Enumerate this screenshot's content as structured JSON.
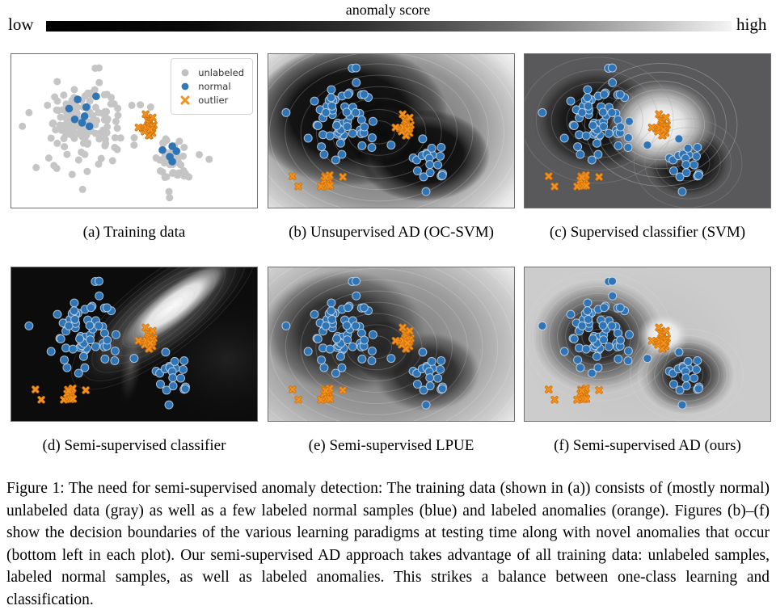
{
  "colorbar": {
    "title": "anomaly score",
    "low_label": "low",
    "high_label": "high",
    "gradient_stops": [
      "#000000 0%",
      "#0a0a0a 22%",
      "#2e2e2e 45%",
      "#6e6e6e 68%",
      "#b5b5b5 86%",
      "#f4f4f4 100%"
    ]
  },
  "legend": {
    "items": [
      {
        "label": "unlabeled",
        "marker": "circle",
        "color": "#c0c0c0"
      },
      {
        "label": "normal",
        "marker": "circle",
        "color": "#3579b5"
      },
      {
        "label": "outlier",
        "marker": "x",
        "color": "#f5911e"
      }
    ]
  },
  "panels": [
    {
      "id": "a",
      "caption": "(a) Training data"
    },
    {
      "id": "b",
      "caption": "(b) Unsupervised AD (OC-SVM)"
    },
    {
      "id": "c",
      "caption": "(c) Supervised classifier (SVM)"
    },
    {
      "id": "d",
      "caption": "(d) Semi-supervised classifier"
    },
    {
      "id": "e",
      "caption": "(e) Semi-supervised LPUE"
    },
    {
      "id": "f",
      "caption": "(f) Semi-supervised AD (ours)"
    }
  ],
  "caption": {
    "text": "Figure 1: The need for semi-supervised anomaly detection: The training data (shown in (a)) consists of (mostly normal) unlabeled data (gray) as well as a few labeled normal samples (blue) and labeled anomalies (orange). Figures (b)–(f) show the decision boundaries of the various learning paradigms at testing time along with novel anomalies that occur (bottom left in each plot). Our semi-supervised AD approach takes advantage of all training data: unlabeled samples, labeled normal samples, as well as labeled anomalies. This strikes a balance between one-class learning and classification."
  },
  "chart_data": {
    "type": "scatter",
    "coordinate_space": "normalized [0,1] x right, y down, within each 304x190 panel",
    "seed": 20190617,
    "marker_colors": {
      "unlabeled_fill": "#c5c5c5",
      "normal_fill": "#2f74b4",
      "normal_edge": "rgba(215,228,240,0.75)",
      "outlier_stroke": "#f5911e",
      "outlier_under_stroke": "#cc720a"
    },
    "clusters": {
      "normal_large": {
        "center": [
          0.3,
          0.45
        ],
        "sigma": [
          0.075,
          0.125
        ],
        "n_unlabeled": 150,
        "n_test_shown": 62
      },
      "normal_small": {
        "center": [
          0.66,
          0.7
        ],
        "sigma": [
          0.047,
          0.075
        ],
        "n_unlabeled": 48,
        "n_test_shown": 20
      },
      "labeled_outliers": {
        "center": [
          0.555,
          0.47
        ],
        "sigma": [
          0.018,
          0.034
        ],
        "n": 18
      },
      "novel_anomaly_cluster": {
        "center": [
          0.232,
          0.828
        ],
        "sigma": [
          0.014,
          0.025
        ],
        "n": 11
      }
    },
    "labeled_normal_points": [
      [
        0.27,
        0.295
      ],
      [
        0.235,
        0.355
      ],
      [
        0.258,
        0.425
      ],
      [
        0.305,
        0.345
      ],
      [
        0.298,
        0.405
      ],
      [
        0.345,
        0.275
      ],
      [
        0.318,
        0.47
      ],
      [
        0.288,
        0.447
      ],
      [
        0.615,
        0.625
      ],
      [
        0.655,
        0.6
      ],
      [
        0.645,
        0.668
      ],
      [
        0.672,
        0.632
      ],
      [
        0.655,
        0.7
      ]
    ],
    "novel_anomaly_singles": [
      [
        0.098,
        0.795
      ],
      [
        0.122,
        0.862
      ],
      [
        0.303,
        0.8
      ]
    ],
    "stray_unlabeled_points": [
      [
        0.525,
        0.33
      ],
      [
        0.567,
        0.345
      ],
      [
        0.765,
        0.655
      ],
      [
        0.805,
        0.685
      ],
      [
        0.045,
        0.47
      ],
      [
        0.5,
        0.545
      ]
    ],
    "panel_fields": {
      "a": {
        "bg": "#ffffff",
        "layers": [],
        "rings": [],
        "markers": {
          "gray": "train_unlabeled",
          "blue": "labeled_normal",
          "orange": "labeled_outliers"
        }
      },
      "b": {
        "bg": "#f5f5f5",
        "layers": [
          {
            "cx": 0.46,
            "cy": 0.5,
            "rx": 0.72,
            "ry": 0.85,
            "stops": [
              [
                0,
                "#606060",
                1
              ],
              [
                0.55,
                "#8f8f8f",
                0.95
              ],
              [
                0.8,
                "#c6c6c6",
                0.8
              ],
              [
                1,
                "#f2f2f2",
                0
              ]
            ]
          },
          {
            "cx": 0.33,
            "cy": 0.4,
            "rx": 0.4,
            "ry": 0.46,
            "stops": [
              [
                0,
                "#0a0a0a",
                1
              ],
              [
                0.6,
                "#141414",
                1
              ],
              [
                0.82,
                "#3c3c3c",
                0.75
              ],
              [
                1,
                "#000000",
                0
              ]
            ]
          },
          {
            "cx": 0.63,
            "cy": 0.66,
            "rx": 0.27,
            "ry": 0.3,
            "stops": [
              [
                0,
                "#0a0a0a",
                1
              ],
              [
                0.6,
                "#141414",
                1
              ],
              [
                0.82,
                "#3c3c3c",
                0.75
              ],
              [
                1,
                "#000000",
                0
              ]
            ]
          },
          {
            "cx": 0.47,
            "cy": 0.52,
            "rx": 0.13,
            "ry": 0.24,
            "rotate": 50,
            "stops": [
              [
                0,
                "#0a0a0a",
                1
              ],
              [
                0.7,
                "#141414",
                0.9
              ],
              [
                1,
                "#000000",
                0
              ]
            ]
          }
        ],
        "rings": [
          {
            "cx": 0.45,
            "cy": 0.51,
            "rx": 0.7,
            "ry": 0.82,
            "count": 11,
            "stroke": "#ffffff",
            "opacity": 0.22
          }
        ],
        "markers": {
          "blue": "test_normal",
          "orange": "all_outliers"
        }
      },
      "c": {
        "bg": "#59595b",
        "layers": [
          {
            "cx": 0.295,
            "cy": 0.43,
            "rx": 0.27,
            "ry": 0.36,
            "stops": [
              [
                0,
                "#0b0b0b",
                1
              ],
              [
                0.5,
                "#161616",
                0.95
              ],
              [
                0.75,
                "#2e2e2e",
                0.8
              ],
              [
                1,
                "#59595b",
                0
              ]
            ]
          },
          {
            "cx": 0.665,
            "cy": 0.71,
            "rx": 0.18,
            "ry": 0.24,
            "stops": [
              [
                0,
                "#0b0b0b",
                1
              ],
              [
                0.5,
                "#161616",
                0.95
              ],
              [
                0.75,
                "#2e2e2e",
                0.8
              ],
              [
                1,
                "#59595b",
                0
              ]
            ]
          },
          {
            "cx": 0.555,
            "cy": 0.46,
            "rx": 0.23,
            "ry": 0.3,
            "stops": [
              [
                0,
                "#ffffff",
                1
              ],
              [
                0.4,
                "#ececec",
                0.95
              ],
              [
                0.65,
                "#c2c2c2",
                0.8
              ],
              [
                0.85,
                "#8f8f8f",
                0.5
              ],
              [
                1,
                "#59595b",
                0
              ]
            ]
          }
        ],
        "rings": [
          {
            "cx": 0.555,
            "cy": 0.46,
            "rx": 0.31,
            "ry": 0.4,
            "count": 7,
            "stroke": "#d8d8d8",
            "opacity": 0.35
          },
          {
            "cx": 0.295,
            "cy": 0.43,
            "rx": 0.31,
            "ry": 0.41,
            "count": 5,
            "stroke": "#9a9a9a",
            "opacity": 0.35
          },
          {
            "cx": 0.665,
            "cy": 0.71,
            "rx": 0.22,
            "ry": 0.29,
            "count": 5,
            "stroke": "#9a9a9a",
            "opacity": 0.35
          }
        ],
        "markers": {
          "blue": "test_normal",
          "orange": "all_outliers"
        }
      },
      "d": {
        "bg": "#0c0c0c",
        "layers": [
          {
            "cx": 0.88,
            "cy": 0.6,
            "rx": 0.35,
            "ry": 0.45,
            "stops": [
              [
                0,
                "#2a2a2a",
                0.7
              ],
              [
                1,
                "#0c0c0c",
                0
              ]
            ]
          },
          {
            "cx": 0.62,
            "cy": 0.3,
            "rx": 0.5,
            "ry": 0.28,
            "rotate": -38,
            "stops": [
              [
                0,
                "#9a9a9a",
                0.9
              ],
              [
                0.6,
                "#555555",
                0.5
              ],
              [
                1,
                "#000000",
                0
              ]
            ]
          },
          {
            "cx": 0.66,
            "cy": 0.25,
            "rx": 0.3,
            "ry": 0.13,
            "rotate": -38,
            "stops": [
              [
                0,
                "#fbfbfb",
                1
              ],
              [
                0.45,
                "#e8e8e8",
                0.95
              ],
              [
                0.75,
                "#9a9a9a",
                0.6
              ],
              [
                1,
                "#000000",
                0
              ]
            ]
          },
          {
            "cx": 0.49,
            "cy": 0.62,
            "rx": 0.05,
            "ry": 0.3,
            "rotate": 8,
            "stops": [
              [
                0,
                "#8a8a8a",
                0.5
              ],
              [
                0.6,
                "#444444",
                0.3
              ],
              [
                1,
                "#000000",
                0
              ]
            ]
          }
        ],
        "rings": [
          {
            "cx": 0.62,
            "cy": 0.3,
            "rx": 0.46,
            "ry": 0.25,
            "rotate": -38,
            "count": 9,
            "stroke": "#bbbbbb",
            "opacity": 0.15
          }
        ],
        "markers": {
          "blue": "test_normal",
          "orange": "all_outliers"
        }
      },
      "e": {
        "bg": "#f2f2f2",
        "layers": [
          {
            "cx": 0.44,
            "cy": 0.52,
            "rx": 0.78,
            "ry": 0.92,
            "stops": [
              [
                0,
                "#6b6b6b",
                1
              ],
              [
                0.5,
                "#979797",
                0.95
              ],
              [
                0.78,
                "#c9c9c9",
                0.85
              ],
              [
                1,
                "#efefef",
                0
              ]
            ]
          },
          {
            "cx": 0.31,
            "cy": 0.42,
            "rx": 0.33,
            "ry": 0.4,
            "stops": [
              [
                0,
                "#1f1f1f",
                1
              ],
              [
                0.55,
                "#2e2e2e",
                0.95
              ],
              [
                0.85,
                "#555555",
                0.6
              ],
              [
                1,
                "#6b6b6b",
                0
              ]
            ]
          },
          {
            "cx": 0.64,
            "cy": 0.68,
            "rx": 0.22,
            "ry": 0.26,
            "stops": [
              [
                0,
                "#1f1f1f",
                1
              ],
              [
                0.55,
                "#2e2e2e",
                0.95
              ],
              [
                0.85,
                "#555555",
                0.6
              ],
              [
                1,
                "#6b6b6b",
                0
              ]
            ]
          },
          {
            "cx": 0.47,
            "cy": 0.54,
            "rx": 0.12,
            "ry": 0.2,
            "rotate": 50,
            "stops": [
              [
                0,
                "#222222",
                0.9
              ],
              [
                0.7,
                "#2e2e2e",
                0.7
              ],
              [
                1,
                "#000000",
                0
              ]
            ]
          }
        ],
        "rings": [
          {
            "cx": 0.44,
            "cy": 0.52,
            "rx": 0.74,
            "ry": 0.88,
            "count": 12,
            "stroke": "#ffffff",
            "opacity": 0.2
          }
        ],
        "markers": {
          "blue": "test_normal",
          "orange": "all_outliers"
        }
      },
      "f": {
        "bg": "#cccccc",
        "layers": [
          {
            "cx": 0.45,
            "cy": 0.55,
            "rx": 0.5,
            "ry": 0.62,
            "stops": [
              [
                0,
                "#a5a5a5",
                0.35
              ],
              [
                0.7,
                "#bcbcbc",
                0.2
              ],
              [
                1,
                "#cccccc",
                0
              ]
            ]
          },
          {
            "cx": 0.3,
            "cy": 0.45,
            "rx": 0.28,
            "ry": 0.38,
            "stops": [
              [
                0,
                "#0d0d0d",
                1
              ],
              [
                0.4,
                "#2b2b2b",
                0.95
              ],
              [
                0.7,
                "#6f6f6f",
                0.75
              ],
              [
                0.9,
                "#ababab",
                0.4
              ],
              [
                1,
                "#cccccc",
                0
              ]
            ]
          },
          {
            "cx": 0.66,
            "cy": 0.7,
            "rx": 0.2,
            "ry": 0.27,
            "stops": [
              [
                0,
                "#0d0d0d",
                1
              ],
              [
                0.4,
                "#2b2b2b",
                0.95
              ],
              [
                0.7,
                "#6f6f6f",
                0.75
              ],
              [
                0.9,
                "#ababab",
                0.4
              ],
              [
                1,
                "#cccccc",
                0
              ]
            ]
          },
          {
            "cx": 0.565,
            "cy": 0.44,
            "rx": 0.105,
            "ry": 0.14,
            "stops": [
              [
                0,
                "#ffffff",
                1
              ],
              [
                0.55,
                "#ededed",
                0.85
              ],
              [
                1,
                "#cccccc",
                0
              ]
            ]
          }
        ],
        "rings": [
          {
            "cx": 0.3,
            "cy": 0.45,
            "rx": 0.3,
            "ry": 0.42,
            "count": 9,
            "stroke": "#e2e2e2",
            "opacity": 0.25
          },
          {
            "cx": 0.66,
            "cy": 0.7,
            "rx": 0.23,
            "ry": 0.3,
            "count": 7,
            "stroke": "#e2e2e2",
            "opacity": 0.25
          }
        ],
        "markers": {
          "blue": "test_normal",
          "orange": "all_outliers"
        }
      }
    }
  }
}
